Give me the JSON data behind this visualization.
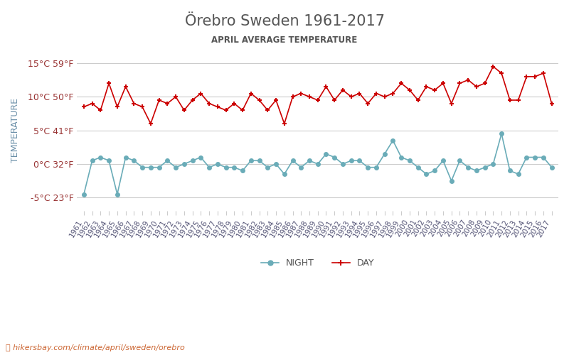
{
  "title": "Örebro Sweden 1961-2017",
  "subtitle": "APRIL AVERAGE TEMPERATURE",
  "ylabel": "TEMPERATURE",
  "watermark": "hikersbay.com/climate/april/sweden/orebro",
  "years": [
    1961,
    1962,
    1963,
    1964,
    1965,
    1966,
    1967,
    1968,
    1969,
    1970,
    1971,
    1972,
    1973,
    1974,
    1975,
    1976,
    1977,
    1978,
    1979,
    1980,
    1981,
    1982,
    1983,
    1984,
    1985,
    1986,
    1987,
    1988,
    1989,
    1990,
    1991,
    1992,
    1993,
    1994,
    1995,
    1996,
    1997,
    1998,
    1999,
    2000,
    2001,
    2002,
    2003,
    2004,
    2005,
    2006,
    2007,
    2008,
    2009,
    2010,
    2011,
    2012,
    2013,
    2014,
    2015,
    2016,
    2017
  ],
  "day_temps": [
    8.5,
    9.0,
    8.0,
    12.0,
    8.5,
    11.5,
    9.0,
    8.5,
    6.0,
    9.5,
    9.0,
    10.0,
    8.0,
    9.5,
    10.5,
    9.0,
    8.5,
    8.0,
    9.0,
    8.0,
    10.5,
    9.5,
    8.0,
    9.5,
    6.0,
    10.0,
    10.5,
    10.0,
    9.5,
    11.5,
    9.5,
    11.0,
    10.0,
    10.5,
    9.0,
    10.5,
    10.0,
    10.5,
    12.0,
    11.0,
    9.5,
    11.5,
    11.0,
    12.0,
    9.0,
    12.0,
    12.5,
    11.5,
    12.0,
    14.5,
    13.5,
    9.5,
    9.5,
    13.0,
    13.0,
    13.5,
    9.0
  ],
  "night_temps": [
    -4.5,
    0.5,
    1.0,
    0.5,
    -4.5,
    1.0,
    0.5,
    -0.5,
    -0.5,
    -0.5,
    0.5,
    -0.5,
    0.0,
    0.5,
    1.0,
    -0.5,
    0.0,
    -0.5,
    -0.5,
    -1.0,
    0.5,
    0.5,
    -0.5,
    0.0,
    -1.5,
    0.5,
    -0.5,
    0.5,
    0.0,
    1.5,
    1.0,
    0.0,
    0.5,
    0.5,
    -0.5,
    -0.5,
    1.5,
    3.5,
    1.0,
    0.5,
    -0.5,
    -1.5,
    -1.0,
    0.5,
    -2.5,
    0.5,
    -0.5,
    -1.0,
    -0.5,
    0.0,
    4.5,
    -1.0,
    -1.5,
    1.0,
    1.0,
    1.0,
    -0.5
  ],
  "day_color": "#cc0000",
  "night_color": "#6aacb8",
  "title_color": "#555555",
  "subtitle_color": "#555555",
  "ylabel_color": "#6a8fa8",
  "tick_color": "#993333",
  "background_color": "#ffffff",
  "grid_color": "#cccccc",
  "yticks_c": [
    -5,
    0,
    5,
    10,
    15
  ],
  "yticks_f": [
    23,
    32,
    41,
    50,
    59
  ],
  "ylim": [
    -7,
    17
  ],
  "legend_night": "NIGHT",
  "legend_day": "DAY",
  "watermark_color": "#cc6633"
}
